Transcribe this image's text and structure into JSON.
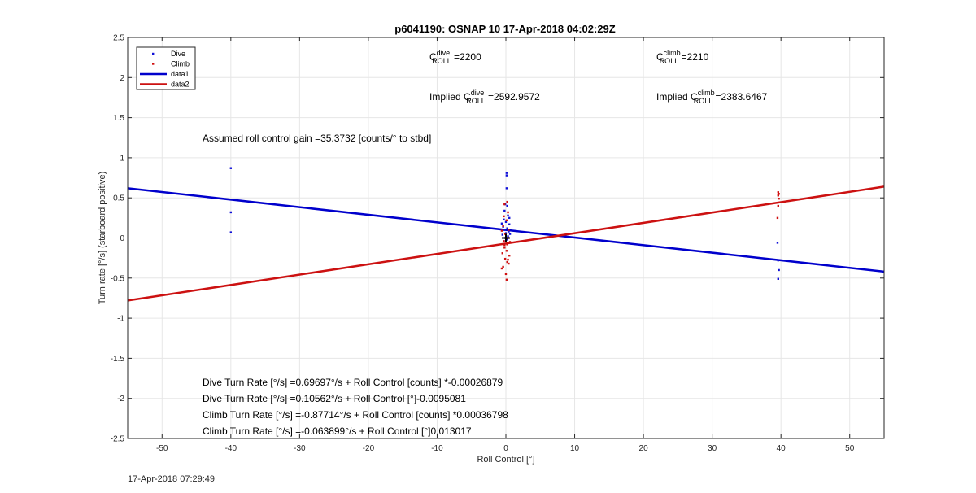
{
  "chart_data": {
    "type": "scatter",
    "title": "p6041190: OSNAP 10 17-Apr-2018 04:02:29Z",
    "xlabel": "Roll Control [°]",
    "ylabel": "Turn rate [°/s] (starboard positive)",
    "xlim": [
      -55,
      55
    ],
    "ylim": [
      -2.5,
      2.5
    ],
    "xticks": [
      -50,
      -40,
      -30,
      -20,
      -10,
      0,
      10,
      20,
      30,
      40,
      50
    ],
    "yticks": [
      -2.5,
      -2,
      -1.5,
      -1,
      -0.5,
      0,
      0.5,
      1,
      1.5,
      2,
      2.5
    ],
    "grid": true,
    "legend_position": "top-left",
    "legend": [
      "Dive",
      "Climb",
      "data1",
      "data2"
    ],
    "colors": {
      "dive": "#1010d8",
      "climb": "#d01010",
      "data1": "#0000cc",
      "data2": "#cc1111"
    },
    "series": [
      {
        "name": "Dive",
        "style": "points",
        "points": [
          [
            -40,
            0.87
          ],
          [
            -40,
            0.32
          ],
          [
            -40,
            0.07
          ],
          [
            0.1,
            0.81
          ],
          [
            0.1,
            0.78
          ],
          [
            0.1,
            0.62
          ],
          [
            -0.1,
            0.42
          ],
          [
            0.2,
            0.4
          ],
          [
            -0.2,
            0.34
          ],
          [
            0.3,
            0.28
          ],
          [
            -0.3,
            0.23
          ],
          [
            0,
            0.2
          ],
          [
            0.5,
            0.17
          ],
          [
            -0.4,
            0.14
          ],
          [
            0.2,
            0.12
          ],
          [
            -0.2,
            0.1
          ],
          [
            0.4,
            0.08
          ],
          [
            0,
            0.06
          ],
          [
            -0.5,
            0.04
          ],
          [
            0.3,
            0.02
          ],
          [
            -0.1,
            0.0
          ],
          [
            0.2,
            -0.02
          ],
          [
            -0.3,
            -0.04
          ],
          [
            0.5,
            0.25
          ],
          [
            -0.6,
            0.18
          ],
          [
            0.6,
            0.05
          ],
          [
            39.5,
            -0.06
          ],
          [
            39.6,
            -0.28
          ],
          [
            39.7,
            -0.4
          ],
          [
            39.6,
            -0.51
          ]
        ]
      },
      {
        "name": "Climb",
        "style": "points",
        "points": [
          [
            0.2,
            0.45
          ],
          [
            -0.2,
            0.42
          ],
          [
            0.3,
            0.32
          ],
          [
            -0.3,
            0.27
          ],
          [
            0.1,
            0.22
          ],
          [
            -0.4,
            0.15
          ],
          [
            0.4,
            0.1
          ],
          [
            -0.1,
            0.05
          ],
          [
            0.3,
            0.0
          ],
          [
            -0.3,
            -0.04
          ],
          [
            0.2,
            -0.08
          ],
          [
            -0.2,
            -0.12
          ],
          [
            0.1,
            -0.16
          ],
          [
            -0.5,
            -0.19
          ],
          [
            0.5,
            -0.22
          ],
          [
            -0.1,
            -0.26
          ],
          [
            0.2,
            -0.3
          ],
          [
            -0.6,
            -0.38
          ],
          [
            0.0,
            -0.45
          ],
          [
            -0.4,
            -0.36
          ],
          [
            0.3,
            -0.27
          ],
          [
            0.4,
            -0.32
          ],
          [
            0.1,
            -0.52
          ],
          [
            -0.6,
            0.09
          ],
          [
            0.6,
            -0.05
          ],
          [
            -0.2,
            -0.09
          ],
          [
            39.6,
            0.57
          ],
          [
            39.7,
            0.55
          ],
          [
            39.6,
            0.53
          ],
          [
            39.7,
            0.49
          ],
          [
            39.6,
            0.4
          ],
          [
            39.5,
            0.25
          ]
        ]
      },
      {
        "name": "data1",
        "style": "line",
        "points": [
          [
            -55,
            0.62
          ],
          [
            55,
            -0.42
          ]
        ]
      },
      {
        "name": "data2",
        "style": "line",
        "points": [
          [
            -55,
            -0.78
          ],
          [
            55,
            0.64
          ]
        ]
      }
    ],
    "marker": {
      "symbol": "+",
      "x": 0,
      "y": 0
    },
    "annotations": {
      "c_dive": {
        "pre": "C",
        "sup": "dive",
        "sub": "ROLL",
        "post": " =2200"
      },
      "c_climb": {
        "pre": "C",
        "sup": "climb",
        "sub": "ROLL",
        "post": " =2210"
      },
      "implied_dive": {
        "pre": "Implied C",
        "sup": "dive",
        "sub": "ROLL",
        "post": " =2592.9572"
      },
      "implied_climb": {
        "pre": "Implied C",
        "sup": "climb",
        "sub": "ROLL",
        "post": " =2383.6467"
      },
      "gain": "Assumed roll control gain =35.3732 [counts/° to stbd]",
      "eq1": "Dive Turn Rate [°/s] =0.69697°/s + Roll Control [counts] *-0.00026879",
      "eq2": "Dive Turn Rate [°/s] =0.10562°/s + Roll Control [°]-0.0095081",
      "eq3": "Climb Turn Rate [°/s] =-0.87714°/s + Roll Control [counts] *0.00036798",
      "eq4": "Climb Turn Rate [°/s] =-0.063899°/s + Roll Control [°]0.013017"
    }
  },
  "footer": {
    "timestamp": "17-Apr-2018 07:29:49"
  }
}
